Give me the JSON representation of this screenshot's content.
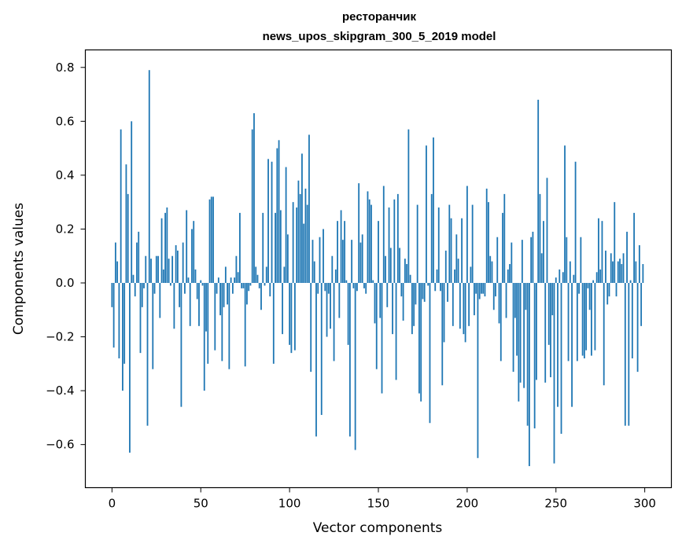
{
  "chart_data": {
    "type": "bar",
    "title": "ресторанчик",
    "subtitle": "news_upos_skipgram_300_5_2019 model",
    "xlabel": "Vector components",
    "ylabel": "Components values",
    "xlim": [
      -15,
      315
    ],
    "ylim": [
      -0.76,
      0.865
    ],
    "xticks": [
      0,
      50,
      100,
      150,
      200,
      250,
      300
    ],
    "yticks": [
      -0.6,
      -0.4,
      -0.2,
      0.0,
      0.2,
      0.4,
      0.6,
      0.8
    ],
    "ytick_labels": [
      "−0.6",
      "−0.4",
      "−0.2",
      "0.0",
      "0.2",
      "0.4",
      "0.6",
      "0.8"
    ],
    "grid": false,
    "bar_color": "#1f77b4",
    "x": [
      0,
      1,
      2,
      3,
      4,
      5,
      6,
      7,
      8,
      9,
      10,
      11,
      12,
      13,
      14,
      15,
      16,
      17,
      18,
      19,
      20,
      21,
      22,
      23,
      24,
      25,
      26,
      27,
      28,
      29,
      30,
      31,
      32,
      33,
      34,
      35,
      36,
      37,
      38,
      39,
      40,
      41,
      42,
      43,
      44,
      45,
      46,
      47,
      48,
      49,
      50,
      51,
      52,
      53,
      54,
      55,
      56,
      57,
      58,
      59,
      60,
      61,
      62,
      63,
      64,
      65,
      66,
      67,
      68,
      69,
      70,
      71,
      72,
      73,
      74,
      75,
      76,
      77,
      78,
      79,
      80,
      81,
      82,
      83,
      84,
      85,
      86,
      87,
      88,
      89,
      90,
      91,
      92,
      93,
      94,
      95,
      96,
      97,
      98,
      99,
      100,
      101,
      102,
      103,
      104,
      105,
      106,
      107,
      108,
      109,
      110,
      111,
      112,
      113,
      114,
      115,
      116,
      117,
      118,
      119,
      120,
      121,
      122,
      123,
      124,
      125,
      126,
      127,
      128,
      129,
      130,
      131,
      132,
      133,
      134,
      135,
      136,
      137,
      138,
      139,
      140,
      141,
      142,
      143,
      144,
      145,
      146,
      147,
      148,
      149,
      150,
      151,
      152,
      153,
      154,
      155,
      156,
      157,
      158,
      159,
      160,
      161,
      162,
      163,
      164,
      165,
      166,
      167,
      168,
      169,
      170,
      171,
      172,
      173,
      174,
      175,
      176,
      177,
      178,
      179,
      180,
      181,
      182,
      183,
      184,
      185,
      186,
      187,
      188,
      189,
      190,
      191,
      192,
      193,
      194,
      195,
      196,
      197,
      198,
      199,
      200,
      201,
      202,
      203,
      204,
      205,
      206,
      207,
      208,
      209,
      210,
      211,
      212,
      213,
      214,
      215,
      216,
      217,
      218,
      219,
      220,
      221,
      222,
      223,
      224,
      225,
      226,
      227,
      228,
      229,
      230,
      231,
      232,
      233,
      234,
      235,
      236,
      237,
      238,
      239,
      240,
      241,
      242,
      243,
      244,
      245,
      246,
      247,
      248,
      249,
      250,
      251,
      252,
      253,
      254,
      255,
      256,
      257,
      258,
      259,
      260,
      261,
      262,
      263,
      264,
      265,
      266,
      267,
      268,
      269,
      270,
      271,
      272,
      273,
      274,
      275,
      276,
      277,
      278,
      279,
      280,
      281,
      282,
      283,
      284,
      285,
      286,
      287,
      288,
      289,
      290,
      291,
      292,
      293,
      294,
      295,
      296,
      297,
      298,
      299
    ],
    "values": [
      -0.09,
      -0.24,
      0.15,
      0.08,
      -0.28,
      0.57,
      -0.4,
      -0.3,
      0.44,
      0.33,
      -0.63,
      0.6,
      0.03,
      -0.05,
      0.15,
      0.19,
      -0.26,
      -0.09,
      -0.02,
      0.1,
      -0.53,
      0.79,
      0.09,
      -0.32,
      -0.04,
      0.1,
      0.1,
      -0.13,
      0.24,
      0.05,
      0.26,
      0.28,
      0.09,
      -0.01,
      0.1,
      -0.17,
      0.14,
      0.12,
      -0.09,
      -0.46,
      0.15,
      -0.04,
      0.27,
      0.02,
      -0.16,
      0.2,
      0.23,
      0.05,
      -0.06,
      -0.16,
      0.01,
      -0.01,
      -0.4,
      -0.18,
      -0.3,
      0.31,
      0.32,
      0.32,
      -0.25,
      -0.04,
      0.02,
      -0.12,
      -0.29,
      -0.09,
      0.06,
      -0.08,
      -0.32,
      0.02,
      -0.04,
      0.02,
      0.1,
      0.04,
      0.26,
      -0.02,
      -0.02,
      -0.31,
      -0.08,
      -0.03,
      -0.01,
      0.57,
      0.63,
      0.06,
      0.03,
      -0.02,
      -0.1,
      0.26,
      -0.01,
      0.06,
      0.46,
      -0.05,
      0.45,
      -0.3,
      0.26,
      0.5,
      0.53,
      0.27,
      -0.19,
      0.06,
      0.43,
      0.18,
      -0.23,
      -0.26,
      0.3,
      -0.25,
      0.28,
      0.38,
      0.33,
      0.48,
      0.22,
      0.35,
      0.29,
      0.55,
      -0.33,
      0.16,
      0.08,
      -0.57,
      -0.04,
      0.17,
      -0.49,
      0.2,
      -0.03,
      -0.2,
      -0.04,
      -0.17,
      0.1,
      -0.29,
      0.05,
      0.23,
      -0.13,
      0.27,
      0.16,
      0.23,
      0.01,
      -0.23,
      -0.57,
      0.16,
      -0.02,
      -0.62,
      -0.03,
      0.37,
      0.15,
      0.18,
      -0.02,
      -0.04,
      0.34,
      0.31,
      0.29,
      0.01,
      -0.15,
      -0.32,
      0.23,
      -0.13,
      -0.41,
      0.36,
      0.1,
      -0.09,
      0.28,
      0.13,
      -0.19,
      0.31,
      -0.36,
      0.33,
      0.13,
      -0.05,
      -0.14,
      0.09,
      0.07,
      0.57,
      0.03,
      -0.19,
      -0.16,
      -0.08,
      0.29,
      -0.41,
      -0.44,
      -0.06,
      -0.07,
      0.51,
      -0.01,
      -0.52,
      0.33,
      0.54,
      -0.03,
      0.05,
      0.28,
      -0.03,
      -0.38,
      -0.22,
      0.12,
      -0.07,
      0.29,
      0.24,
      -0.16,
      0.05,
      0.18,
      0.09,
      -0.17,
      0.24,
      -0.19,
      -0.22,
      0.36,
      -0.16,
      0.06,
      0.29,
      -0.12,
      -0.04,
      -0.65,
      -0.06,
      -0.04,
      -0.04,
      -0.05,
      0.35,
      0.3,
      0.1,
      0.08,
      -0.1,
      -0.05,
      0.17,
      -0.15,
      -0.29,
      0.26,
      0.33,
      -0.13,
      0.05,
      0.07,
      0.15,
      -0.33,
      -0.13,
      -0.27,
      -0.44,
      -0.37,
      0.16,
      -0.39,
      -0.1,
      -0.53,
      -0.68,
      0.17,
      0.19,
      -0.54,
      -0.36,
      0.68,
      0.33,
      0.11,
      0.23,
      -0.37,
      0.39,
      -0.23,
      -0.35,
      -0.12,
      -0.67,
      0.02,
      -0.46,
      0.05,
      -0.56,
      0.04,
      0.51,
      0.17,
      -0.29,
      0.08,
      -0.46,
      0.03,
      0.45,
      -0.29,
      -0.04,
      0.17,
      -0.27,
      -0.28,
      -0.25,
      -0.02,
      -0.1,
      -0.27,
      0.01,
      -0.25,
      0.04,
      0.24,
      0.05,
      0.23,
      -0.38,
      0.12,
      -0.08,
      -0.05,
      0.11,
      0.08,
      0.3,
      -0.05,
      0.08,
      0.09,
      0.07,
      0.11,
      -0.53,
      0.19,
      -0.53,
      0.01,
      -0.28,
      0.26,
      0.08,
      -0.33,
      0.14,
      -0.16,
      0.07
    ]
  }
}
